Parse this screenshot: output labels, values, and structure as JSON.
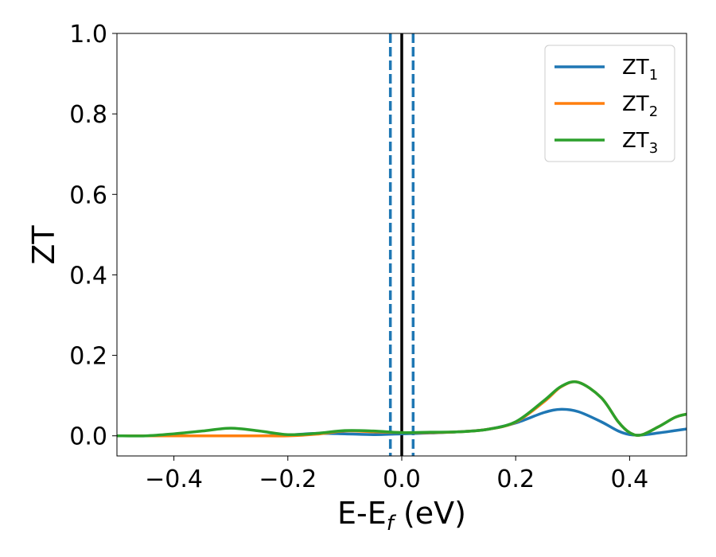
{
  "chart_data": {
    "type": "line",
    "xlabel": "E-E",
    "xlabel_sub": "f",
    "xlabel_unit": " (eV)",
    "ylabel": "ZT",
    "xlim": [
      -0.5,
      0.5
    ],
    "ylim": [
      -0.05,
      1.0
    ],
    "xticks": [
      -0.4,
      -0.2,
      0.0,
      0.2,
      0.4
    ],
    "xtick_labels": [
      "−0.4",
      "−0.2",
      "0.0",
      "0.2",
      "0.4"
    ],
    "yticks": [
      0.0,
      0.2,
      0.4,
      0.6,
      0.8,
      1.0
    ],
    "ytick_labels": [
      "0.0",
      "0.2",
      "0.4",
      "0.6",
      "0.8",
      "1.0"
    ],
    "grid": false,
    "legend_position": "top-right",
    "vlines": [
      {
        "x": -0.02,
        "style": "dashed",
        "color": "#1f77b4"
      },
      {
        "x": 0.0,
        "style": "solid",
        "color": "#000000"
      },
      {
        "x": 0.02,
        "style": "dashed",
        "color": "#1f77b4"
      }
    ],
    "x": [
      -0.5,
      -0.45,
      -0.4,
      -0.35,
      -0.3,
      -0.25,
      -0.2,
      -0.15,
      -0.1,
      -0.05,
      0.0,
      0.05,
      0.1,
      0.15,
      0.2,
      0.25,
      0.28,
      0.31,
      0.35,
      0.38,
      0.4,
      0.42,
      0.45,
      0.48,
      0.5
    ],
    "series": [
      {
        "name": "ZT",
        "name_sub": "1",
        "color": "#1f77b4",
        "values": [
          0.0,
          0.0,
          0.0,
          0.0,
          0.0,
          0.0,
          0.002,
          0.006,
          0.005,
          0.003,
          0.005,
          0.007,
          0.01,
          0.016,
          0.032,
          0.058,
          0.066,
          0.06,
          0.035,
          0.012,
          0.003,
          0.002,
          0.007,
          0.013,
          0.017
        ]
      },
      {
        "name": "ZT",
        "name_sub": "2",
        "color": "#ff7f0e",
        "values": [
          0.0,
          0.0,
          0.0,
          0.0,
          0.0,
          0.0,
          0.0,
          0.004,
          0.012,
          0.01,
          0.008,
          0.008,
          0.01,
          0.016,
          0.034,
          0.085,
          0.122,
          0.133,
          0.095,
          0.035,
          0.008,
          0.002,
          0.022,
          0.046,
          0.054
        ]
      },
      {
        "name": "ZT",
        "name_sub": "3",
        "color": "#2ca02c",
        "values": [
          0.0,
          0.0,
          0.005,
          0.012,
          0.019,
          0.012,
          0.003,
          0.006,
          0.013,
          0.012,
          0.008,
          0.009,
          0.01,
          0.016,
          0.035,
          0.088,
          0.123,
          0.133,
          0.095,
          0.035,
          0.008,
          0.002,
          0.022,
          0.046,
          0.054
        ]
      }
    ]
  }
}
